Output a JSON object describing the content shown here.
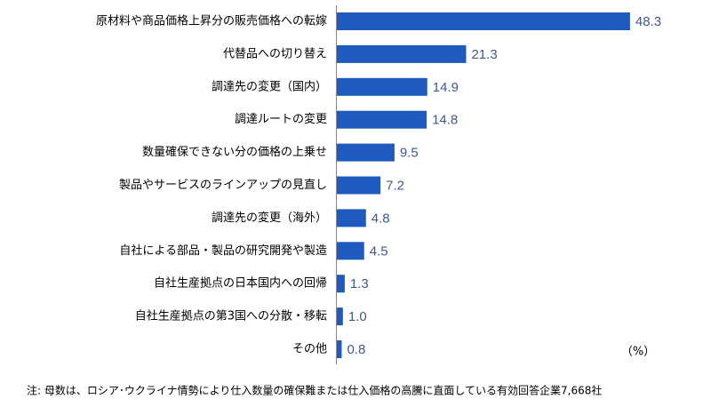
{
  "chart_data": {
    "type": "bar",
    "orientation": "horizontal",
    "categories": [
      "原材料や商品価格上昇分の販売価格への転嫁",
      "代替品への切り替え",
      "調達先の変更（国内）",
      "調達ルートの変更",
      "数量確保できない分の価格の上乗せ",
      "製品やサービスのラインアップの見直し",
      "調達先の変更（海外）",
      "自社による部品・製品の研究開発や製造",
      "自社生産拠点の日本国内への回帰",
      "自社生産拠点の第3国への分散・移転",
      "その他"
    ],
    "values": [
      48.3,
      21.3,
      14.9,
      14.8,
      9.5,
      7.2,
      4.8,
      4.5,
      1.3,
      1.0,
      0.8
    ],
    "value_labels": [
      "48.3",
      "21.3",
      "14.9",
      "14.8",
      "9.5",
      "7.2",
      "4.8",
      "4.5",
      "1.3",
      "1.0",
      "0.8"
    ],
    "color": "#1f5bbf",
    "unit_label": "（%）",
    "note": "注: 母数は、ロシア･ウクライナ情勢により仕入数量の確保難または仕入価格の高騰に直面している有効回答企業7,668社"
  }
}
